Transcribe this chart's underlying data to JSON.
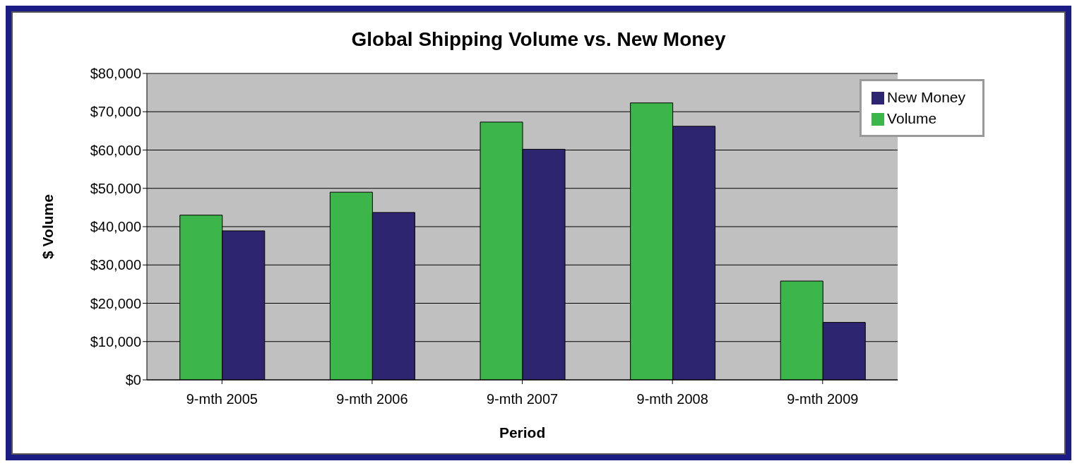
{
  "chart_data": {
    "type": "bar",
    "title": "Global Shipping Volume vs. New Money",
    "xlabel": "Period",
    "ylabel": "$ Volume",
    "categories": [
      "9-mth 2005",
      "9-mth 2006",
      "9-mth 2007",
      "9-mth 2008",
      "9-mth 2009"
    ],
    "series": [
      {
        "name": "Volume",
        "color": "#3cb54a",
        "values": [
          43000,
          49000,
          67300,
          72300,
          25800
        ]
      },
      {
        "name": "New Money",
        "color": "#2e2570",
        "values": [
          38900,
          43700,
          60200,
          66200,
          15000
        ]
      }
    ],
    "ylim": [
      0,
      80000
    ],
    "yticks": [
      {
        "value": 0,
        "label": "$0"
      },
      {
        "value": 10000,
        "label": "$10,000"
      },
      {
        "value": 20000,
        "label": "$20,000"
      },
      {
        "value": 30000,
        "label": "$30,000"
      },
      {
        "value": 40000,
        "label": "$40,000"
      },
      {
        "value": 50000,
        "label": "$50,000"
      },
      {
        "value": 60000,
        "label": "$60,000"
      },
      {
        "value": 70000,
        "label": "$70,000"
      },
      {
        "value": 80000,
        "label": "$80,000"
      }
    ],
    "grid": "y",
    "legend": "top right"
  }
}
